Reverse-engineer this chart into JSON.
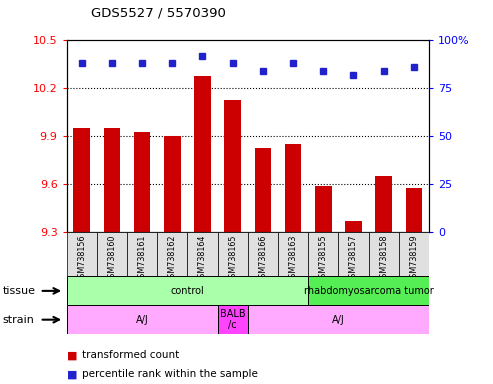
{
  "title": "GDS5527 / 5570390",
  "samples": [
    "GSM738156",
    "GSM738160",
    "GSM738161",
    "GSM738162",
    "GSM738164",
    "GSM738165",
    "GSM738166",
    "GSM738163",
    "GSM738155",
    "GSM738157",
    "GSM738158",
    "GSM738159"
  ],
  "bar_values": [
    9.95,
    9.95,
    9.93,
    9.9,
    10.28,
    10.13,
    9.83,
    9.85,
    9.59,
    9.37,
    9.65,
    9.58
  ],
  "dot_values": [
    88,
    88,
    88,
    88,
    92,
    88,
    84,
    88,
    84,
    82,
    84,
    86
  ],
  "ylim_left": [
    9.3,
    10.5
  ],
  "ylim_right": [
    0,
    100
  ],
  "yticks_left": [
    9.3,
    9.6,
    9.9,
    10.2,
    10.5
  ],
  "yticks_right": [
    0,
    25,
    50,
    75,
    100
  ],
  "ytick_right_labels": [
    "0",
    "25",
    "50",
    "75",
    "100%"
  ],
  "bar_color": "#cc0000",
  "dot_color": "#2222cc",
  "tissue_groups": [
    {
      "label": "control",
      "start": 0,
      "end": 8,
      "color": "#aaffaa"
    },
    {
      "label": "rhabdomyosarcoma tumor",
      "start": 8,
      "end": 12,
      "color": "#55ee55"
    }
  ],
  "strain_groups": [
    {
      "label": "A/J",
      "start": 0,
      "end": 5,
      "color": "#ffaaff"
    },
    {
      "label": "BALB\n/c",
      "start": 5,
      "end": 6,
      "color": "#ff44ff"
    },
    {
      "label": "A/J",
      "start": 6,
      "end": 12,
      "color": "#ffaaff"
    }
  ],
  "legend_bar_label": "transformed count",
  "legend_dot_label": "percentile rank within the sample",
  "tissue_label": "tissue",
  "strain_label": "strain",
  "background_color": "#ffffff",
  "plot_bg_color": "#ffffff",
  "xtick_bg_color": "#dddddd",
  "base_value": 9.3
}
